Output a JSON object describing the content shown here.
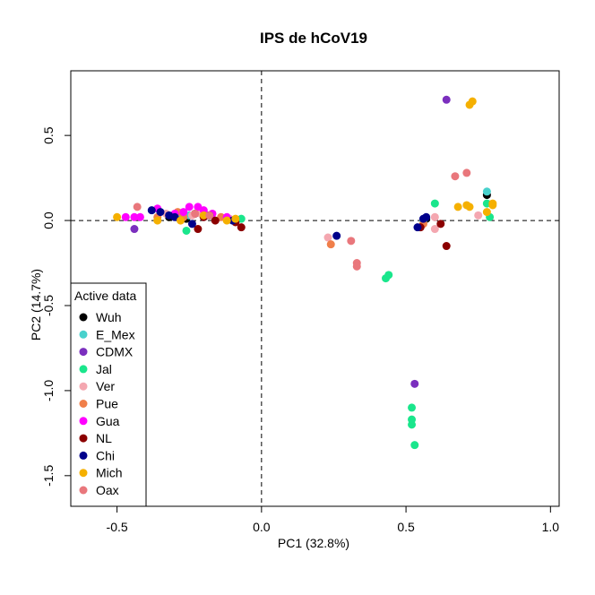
{
  "chart_data": {
    "type": "scatter",
    "title": "IPS de hCoV19",
    "xlabel": "PC1 (32.8%)",
    "ylabel": "PC2 (14.7%)",
    "xlim": [
      -0.66,
      1.03
    ],
    "ylim": [
      -1.68,
      0.88
    ],
    "xticks": [
      -0.5,
      0.0,
      0.5,
      1.0
    ],
    "xtick_labels": [
      "-0.5",
      "0.0",
      "0.5",
      "1.0"
    ],
    "yticks": [
      -1.5,
      -1.0,
      -0.5,
      0.0,
      0.5
    ],
    "ytick_labels": [
      "-1.5",
      "-1.0",
      "-0.5",
      "0.0",
      "0.5"
    ],
    "reference_lines": {
      "x": 0,
      "y": 0,
      "style": "dashed"
    },
    "grid": false,
    "legend": {
      "title": "Active data",
      "position": "bottom-left"
    },
    "series": [
      {
        "name": "Wuh",
        "color": "#000000",
        "points": [
          [
            -0.3,
            0.03
          ],
          [
            -0.32,
            0.02
          ],
          [
            -0.26,
            0.01
          ],
          [
            -0.23,
            0.04
          ],
          [
            0.57,
            0.01
          ],
          [
            0.78,
            0.15
          ]
        ]
      },
      {
        "name": "E_Mex",
        "color": "#48D1CC",
        "points": [
          [
            -0.28,
            0.02
          ],
          [
            -0.25,
            0.03
          ],
          [
            0.56,
            0.0
          ],
          [
            0.78,
            0.17
          ]
        ]
      },
      {
        "name": "CDMX",
        "color": "#7B2FBE",
        "points": [
          [
            -0.44,
            -0.05
          ],
          [
            -0.19,
            0.03
          ],
          [
            0.53,
            -0.96
          ],
          [
            0.64,
            0.71
          ]
        ]
      },
      {
        "name": "Jal",
        "color": "#1AE68C",
        "points": [
          [
            -0.26,
            -0.06
          ],
          [
            -0.07,
            0.01
          ],
          [
            0.43,
            -0.34
          ],
          [
            0.44,
            -0.32
          ],
          [
            0.52,
            -1.1
          ],
          [
            0.52,
            -1.17
          ],
          [
            0.52,
            -1.2
          ],
          [
            0.53,
            -1.32
          ],
          [
            0.6,
            0.1
          ],
          [
            0.78,
            0.1
          ],
          [
            0.79,
            0.02
          ]
        ]
      },
      {
        "name": "Ver",
        "color": "#F4A7B0",
        "points": [
          [
            -0.33,
            0.04
          ],
          [
            -0.24,
            0.03
          ],
          [
            -0.21,
            0.04
          ],
          [
            -0.11,
            0.01
          ],
          [
            0.23,
            -0.1
          ],
          [
            0.55,
            -0.04
          ],
          [
            0.6,
            -0.05
          ],
          [
            0.6,
            0.02
          ],
          [
            0.75,
            0.03
          ]
        ]
      },
      {
        "name": "Pue",
        "color": "#F07F4A",
        "points": [
          [
            -0.36,
            0.02
          ],
          [
            -0.29,
            0.05
          ],
          [
            -0.27,
            0.02
          ],
          [
            -0.14,
            0.02
          ],
          [
            0.24,
            -0.14
          ],
          [
            0.56,
            -0.02
          ]
        ]
      },
      {
        "name": "Gua",
        "color": "#FF00FF",
        "points": [
          [
            -0.47,
            0.02
          ],
          [
            -0.44,
            0.02
          ],
          [
            -0.42,
            0.02
          ],
          [
            -0.36,
            0.07
          ],
          [
            -0.3,
            0.04
          ],
          [
            -0.27,
            0.05
          ],
          [
            -0.25,
            0.08
          ],
          [
            -0.22,
            0.08
          ],
          [
            -0.2,
            0.06
          ],
          [
            -0.17,
            0.04
          ],
          [
            -0.12,
            0.02
          ]
        ]
      },
      {
        "name": "NL",
        "color": "#8B0000",
        "points": [
          [
            -0.22,
            -0.05
          ],
          [
            -0.2,
            0.02
          ],
          [
            -0.16,
            0.0
          ],
          [
            -0.09,
            -0.01
          ],
          [
            -0.07,
            -0.04
          ],
          [
            0.55,
            -0.04
          ],
          [
            0.62,
            -0.02
          ],
          [
            0.64,
            -0.15
          ]
        ]
      },
      {
        "name": "Chi",
        "color": "#00008B",
        "points": [
          [
            -0.38,
            0.06
          ],
          [
            -0.35,
            0.05
          ],
          [
            -0.32,
            0.03
          ],
          [
            -0.3,
            0.02
          ],
          [
            -0.24,
            -0.02
          ],
          [
            -0.18,
            0.03
          ],
          [
            -0.1,
            0.0
          ],
          [
            0.26,
            -0.09
          ],
          [
            0.54,
            -0.04
          ],
          [
            0.56,
            0.01
          ],
          [
            0.57,
            0.02
          ]
        ]
      },
      {
        "name": "Mich",
        "color": "#F5B000",
        "points": [
          [
            -0.5,
            0.02
          ],
          [
            -0.36,
            0.0
          ],
          [
            -0.28,
            0.0
          ],
          [
            -0.2,
            0.03
          ],
          [
            -0.12,
            0.0
          ],
          [
            -0.09,
            0.01
          ],
          [
            0.68,
            0.08
          ],
          [
            0.71,
            0.09
          ],
          [
            0.72,
            0.08
          ],
          [
            0.72,
            0.68
          ],
          [
            0.73,
            0.7
          ],
          [
            0.78,
            0.05
          ],
          [
            0.8,
            0.09
          ],
          [
            0.8,
            0.1
          ]
        ]
      },
      {
        "name": "Oax",
        "color": "#E9777C",
        "points": [
          [
            -0.43,
            0.08
          ],
          [
            -0.23,
            0.04
          ],
          [
            -0.18,
            0.03
          ],
          [
            0.31,
            -0.12
          ],
          [
            0.33,
            -0.25
          ],
          [
            0.33,
            -0.27
          ],
          [
            0.67,
            0.26
          ],
          [
            0.71,
            0.28
          ]
        ]
      }
    ]
  }
}
